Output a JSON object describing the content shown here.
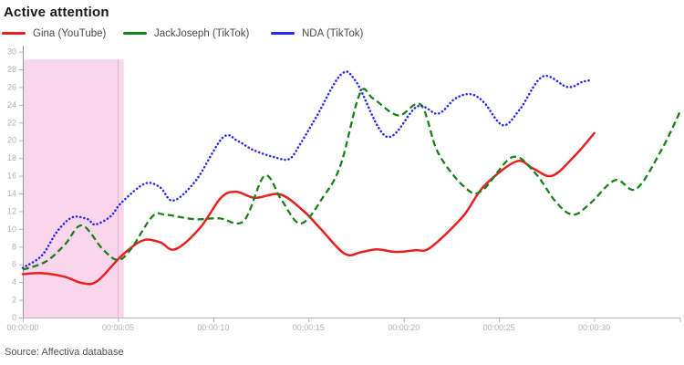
{
  "header": {
    "title": "Active attention"
  },
  "legend": [
    {
      "label": "Gina (YouTube)",
      "color": "#ea1f1f",
      "style": "solid"
    },
    {
      "label": "JackJoseph (TikTok)",
      "color": "#1a801a",
      "style": "dashed"
    },
    {
      "label": "NDA (TikTok)",
      "color": "#2a2aee",
      "style": "dotted"
    }
  ],
  "footer": {
    "source": "Source: Affectiva database"
  },
  "chart_data": {
    "type": "line",
    "title": "Active attention",
    "xlabel": "",
    "ylabel": "",
    "x_unit": "time (hh:mm:ss)",
    "xlim": [
      0,
      34.5
    ],
    "ylim": [
      0,
      30
    ],
    "grid": "off",
    "legend_position": "top",
    "y_ticks": [
      0,
      2,
      4,
      6,
      8,
      10,
      12,
      14,
      16,
      18,
      20,
      22,
      24,
      26,
      28,
      30
    ],
    "x_ticks": [
      {
        "t": 0,
        "label": "00:00:00"
      },
      {
        "t": 5,
        "label": "00:00:05"
      },
      {
        "t": 10,
        "label": "00:00:10"
      },
      {
        "t": 15,
        "label": "00:00:15"
      },
      {
        "t": 20,
        "label": "00:00:20"
      },
      {
        "t": 25,
        "label": "00:00:25"
      },
      {
        "t": 30,
        "label": "00:00:30"
      },
      {
        "t": 34.5,
        "label": ""
      }
    ],
    "highlight_region": {
      "t_start": 0,
      "t_end": 5.3,
      "v_top": 29.1,
      "color": "#fad6ec",
      "gridline_at_s": 5
    },
    "series": [
      {
        "name": "Gina (YouTube)",
        "color": "#ea1f1f",
        "style": "solid",
        "points": [
          [
            0,
            4.9
          ],
          [
            1,
            5.0
          ],
          [
            2.2,
            4.6
          ],
          [
            3.1,
            3.9
          ],
          [
            3.9,
            4.1
          ],
          [
            5.2,
            7.0
          ],
          [
            6.3,
            8.7
          ],
          [
            7.2,
            8.5
          ],
          [
            8,
            7.7
          ],
          [
            9.3,
            10.1
          ],
          [
            10.4,
            13.5
          ],
          [
            11.2,
            14.2
          ],
          [
            12.2,
            13.5
          ],
          [
            13.5,
            13.9
          ],
          [
            14.7,
            12.1
          ],
          [
            15.6,
            10.1
          ],
          [
            16.9,
            7.2
          ],
          [
            17.8,
            7.4
          ],
          [
            18.6,
            7.7
          ],
          [
            19.6,
            7.4
          ],
          [
            20.6,
            7.6
          ],
          [
            21.4,
            7.9
          ],
          [
            23.1,
            11.4
          ],
          [
            24.2,
            14.8
          ],
          [
            25.9,
            17.6
          ],
          [
            26.8,
            16.8
          ],
          [
            27.8,
            16.0
          ],
          [
            29,
            18.3
          ],
          [
            30,
            20.8
          ]
        ]
      },
      {
        "name": "JackJoseph (TikTok)",
        "color": "#1a801a",
        "style": "dashed",
        "points": [
          [
            0,
            5.4
          ],
          [
            1.2,
            6.3
          ],
          [
            2.2,
            8.2
          ],
          [
            3.1,
            10.4
          ],
          [
            4.2,
            7.7
          ],
          [
            5,
            6.5
          ],
          [
            5.7,
            7.8
          ],
          [
            6.8,
            11.4
          ],
          [
            7.5,
            11.6
          ],
          [
            9,
            11.1
          ],
          [
            10.3,
            11.2
          ],
          [
            11.6,
            10.9
          ],
          [
            12.7,
            16.0
          ],
          [
            13.6,
            13.2
          ],
          [
            14.6,
            10.6
          ],
          [
            15.8,
            13.7
          ],
          [
            16.7,
            17.3
          ],
          [
            17.7,
            25.3
          ],
          [
            18.4,
            24.7
          ],
          [
            19.7,
            22.8
          ],
          [
            20.9,
            24.0
          ],
          [
            21.8,
            18.6
          ],
          [
            23.2,
            14.7
          ],
          [
            24.1,
            14.3
          ],
          [
            25.7,
            18.1
          ],
          [
            26.9,
            16.3
          ],
          [
            28,
            13.0
          ],
          [
            28.9,
            11.6
          ],
          [
            29.8,
            12.9
          ],
          [
            31.1,
            15.5
          ],
          [
            32.2,
            14.5
          ],
          [
            33.5,
            18.8
          ],
          [
            34.5,
            23.2
          ]
        ]
      },
      {
        "name": "NDA (TikTok)",
        "color": "#2a2aee",
        "style": "dotted",
        "points": [
          [
            0,
            5.6
          ],
          [
            1,
            7.0
          ],
          [
            1.8,
            9.7
          ],
          [
            2.6,
            11.3
          ],
          [
            3.4,
            11.1
          ],
          [
            3.8,
            10.5
          ],
          [
            4.6,
            11.4
          ],
          [
            5.2,
            13.0
          ],
          [
            6.4,
            15.1
          ],
          [
            7.2,
            14.7
          ],
          [
            7.9,
            13.2
          ],
          [
            9.1,
            15.5
          ],
          [
            10.5,
            20.3
          ],
          [
            11.3,
            19.9
          ],
          [
            12.1,
            18.9
          ],
          [
            13.2,
            18.1
          ],
          [
            14,
            17.9
          ],
          [
            14.6,
            19.7
          ],
          [
            15.4,
            22.6
          ],
          [
            16.7,
            27.4
          ],
          [
            17.5,
            26.6
          ],
          [
            19.1,
            20.4
          ],
          [
            20.7,
            23.8
          ],
          [
            21.8,
            23.0
          ],
          [
            22.7,
            24.7
          ],
          [
            23.5,
            25.2
          ],
          [
            24.2,
            24.3
          ],
          [
            25.2,
            21.7
          ],
          [
            26.1,
            23.5
          ],
          [
            27.3,
            27.2
          ],
          [
            28.6,
            26.0
          ],
          [
            29.4,
            26.6
          ],
          [
            29.9,
            26.8
          ]
        ]
      }
    ]
  }
}
